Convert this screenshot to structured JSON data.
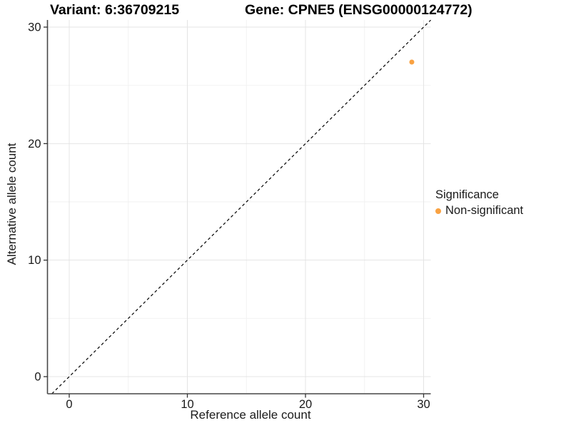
{
  "header": {
    "variant_title": "Variant: 6:36709215",
    "gene_title": "Gene: CPNE5 (ENSG00000124772)"
  },
  "axes": {
    "x_label": "Reference allele count",
    "y_label": "Alternative allele count"
  },
  "legend": {
    "title": "Significance",
    "entries": [
      {
        "label": "Non-significant",
        "color": "#F9A242"
      }
    ]
  },
  "chart_data": {
    "type": "scatter",
    "title_left": "Variant: 6:36709215",
    "title_right": "Gene: CPNE5 (ENSG00000124772)",
    "xlabel": "Reference allele count",
    "ylabel": "Alternative allele count",
    "xlim": [
      -1.8,
      30.6
    ],
    "ylim": [
      -1.5,
      32.1
    ],
    "xticks": [
      0,
      10,
      20,
      30
    ],
    "yticks": [
      0,
      10,
      20,
      30
    ],
    "x_minor_ticks": [
      5,
      15,
      25
    ],
    "y_minor_ticks": [
      5,
      15,
      25
    ],
    "grid": true,
    "legend_position": "right",
    "identity_line": {
      "equation": "y = x",
      "style": "dashed",
      "color": "#000000"
    },
    "series": [
      {
        "name": "Non-significant",
        "color": "#F9A242",
        "points": [
          {
            "x": 29,
            "y": 27
          }
        ]
      }
    ]
  },
  "colors": {
    "point": "#F9A242",
    "axis_line": "#474747",
    "tick_mark": "#333333",
    "tick_label": "#1a1a1a",
    "grid_major": "#e4e4e4",
    "grid_minor": "#f1f1f1",
    "background": "#ffffff"
  }
}
